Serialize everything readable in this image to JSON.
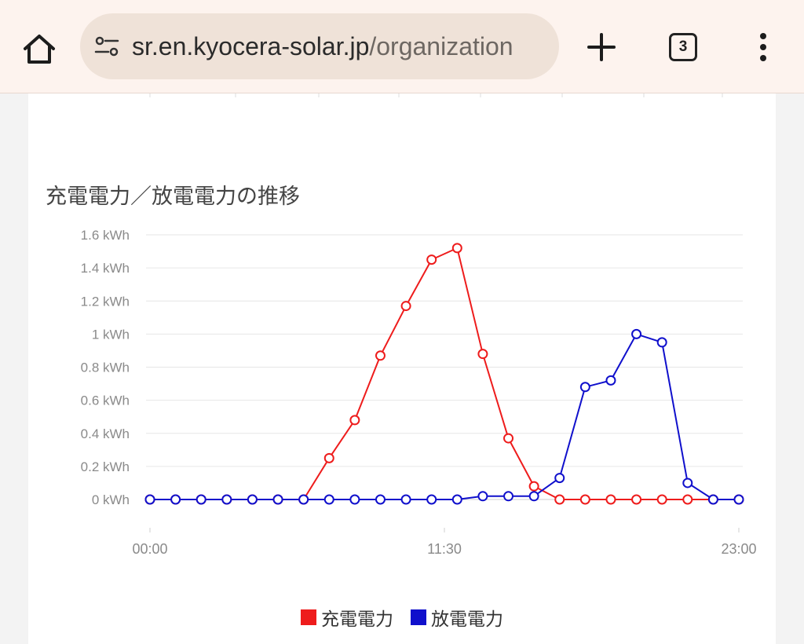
{
  "browser": {
    "url_host": "sr.en.kyocera-solar.jp",
    "url_path": "/organization",
    "tab_count": "3",
    "icons": {
      "home": "home-icon",
      "site_info": "tune-icon",
      "new_tab": "plus-icon",
      "menu": "more-vertical-icon"
    }
  },
  "chart_data": {
    "type": "line",
    "title": "充電電力／放電電力の推移",
    "y_ticks": [
      "0 kWh",
      "0.2 kWh",
      "0.4 kWh",
      "0.6 kWh",
      "0.8 kWh",
      "1 kWh",
      "1.2 kWh",
      "1.4 kWh",
      "1.6 kWh"
    ],
    "x_tick_labels": [
      "00:00",
      "11:30",
      "23:00"
    ],
    "ylim": [
      0,
      1.6
    ],
    "x_hours": [
      0,
      1,
      2,
      3,
      4,
      5,
      6,
      7,
      8,
      9,
      10,
      11,
      12,
      13,
      14,
      15,
      16,
      17,
      18,
      19,
      20,
      21,
      22,
      23
    ],
    "series": [
      {
        "name": "充電電力",
        "color": "#ee1c1c",
        "values": [
          0,
          0,
          0,
          0,
          0,
          0,
          0,
          0.25,
          0.48,
          0.87,
          1.17,
          1.45,
          1.52,
          0.88,
          0.37,
          0.08,
          0,
          0,
          0,
          0,
          0,
          0,
          0,
          0
        ]
      },
      {
        "name": "放電電力",
        "color": "#1010cc",
        "values": [
          0,
          0,
          0,
          0,
          0,
          0,
          0,
          0,
          0,
          0,
          0,
          0,
          0,
          0.02,
          0.02,
          0.02,
          0.13,
          0.68,
          0.72,
          1.0,
          0.95,
          0.1,
          0,
          0
        ]
      }
    ]
  }
}
